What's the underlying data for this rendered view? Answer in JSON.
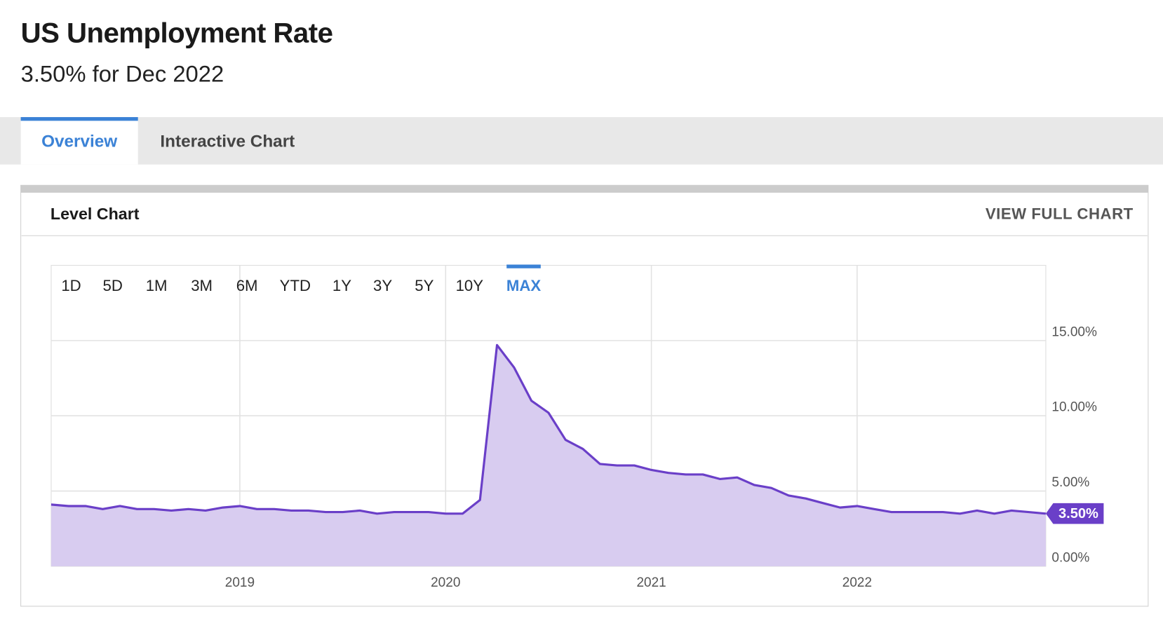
{
  "header": {
    "title": "US Unemployment Rate",
    "subtitle": "3.50% for Dec 2022"
  },
  "tabs": [
    "Overview",
    "Interactive Chart"
  ],
  "active_tab": "Overview",
  "card": {
    "title": "Level Chart",
    "link": "VIEW FULL CHART"
  },
  "ranges": [
    "1D",
    "5D",
    "1M",
    "3M",
    "6M",
    "YTD",
    "1Y",
    "3Y",
    "5Y",
    "10Y",
    "MAX"
  ],
  "active_range": "MAX",
  "chart_data": {
    "type": "line",
    "color": "#6a3fc8",
    "fill": "#d8ccf0",
    "grid": true,
    "x": [
      2018.083,
      2018.167,
      2018.25,
      2018.333,
      2018.417,
      2018.5,
      2018.583,
      2018.667,
      2018.75,
      2018.833,
      2018.917,
      2019,
      2019.083,
      2019.167,
      2019.25,
      2019.333,
      2019.417,
      2019.5,
      2019.583,
      2019.667,
      2019.75,
      2019.833,
      2019.917,
      2020,
      2020.083,
      2020.167,
      2020.25,
      2020.333,
      2020.417,
      2020.5,
      2020.583,
      2020.667,
      2020.75,
      2020.833,
      2020.917,
      2021,
      2021.083,
      2021.167,
      2021.25,
      2021.333,
      2021.417,
      2021.5,
      2021.583,
      2021.667,
      2021.75,
      2021.833,
      2021.917,
      2022,
      2022.083,
      2022.167,
      2022.25,
      2022.333,
      2022.417,
      2022.5,
      2022.583,
      2022.667,
      2022.75,
      2022.833,
      2022.917
    ],
    "values": [
      4.1,
      4.0,
      4.0,
      3.8,
      4.0,
      3.8,
      3.8,
      3.7,
      3.8,
      3.7,
      3.9,
      4.0,
      3.8,
      3.8,
      3.7,
      3.7,
      3.6,
      3.6,
      3.7,
      3.5,
      3.6,
      3.6,
      3.6,
      3.5,
      3.5,
      4.4,
      14.7,
      13.2,
      11.0,
      10.2,
      8.4,
      7.8,
      6.8,
      6.7,
      6.7,
      6.4,
      6.2,
      6.1,
      6.1,
      5.8,
      5.9,
      5.4,
      5.2,
      4.7,
      4.5,
      4.2,
      3.9,
      4.0,
      3.8,
      3.6,
      3.6,
      3.6,
      3.6,
      3.5,
      3.7,
      3.5,
      3.7,
      3.6,
      3.5
    ],
    "value_labels": [
      null,
      null,
      null,
      null,
      null,
      null,
      null,
      null,
      null,
      null,
      null,
      null,
      null,
      null,
      null,
      null,
      null,
      null,
      null,
      null,
      null,
      null,
      null,
      null,
      null,
      null,
      null,
      null,
      null,
      null,
      null,
      null,
      null,
      null,
      null,
      null,
      null,
      null,
      null,
      null,
      null,
      null,
      null,
      null,
      null,
      null,
      null,
      null,
      null,
      null,
      null,
      null,
      null,
      null,
      null,
      null,
      null,
      null,
      "3.50%"
    ],
    "xlim": [
      2018.083,
      2022.917
    ],
    "xticks": [
      2019,
      2020,
      2021,
      2022
    ],
    "ylim": [
      0,
      20
    ],
    "yticks": [
      {
        "value": 0,
        "label": "0.00%"
      },
      {
        "value": 5,
        "label": "5.00%"
      },
      {
        "value": 10,
        "label": "10.00%"
      },
      {
        "value": 15,
        "label": "15.00%"
      }
    ]
  }
}
